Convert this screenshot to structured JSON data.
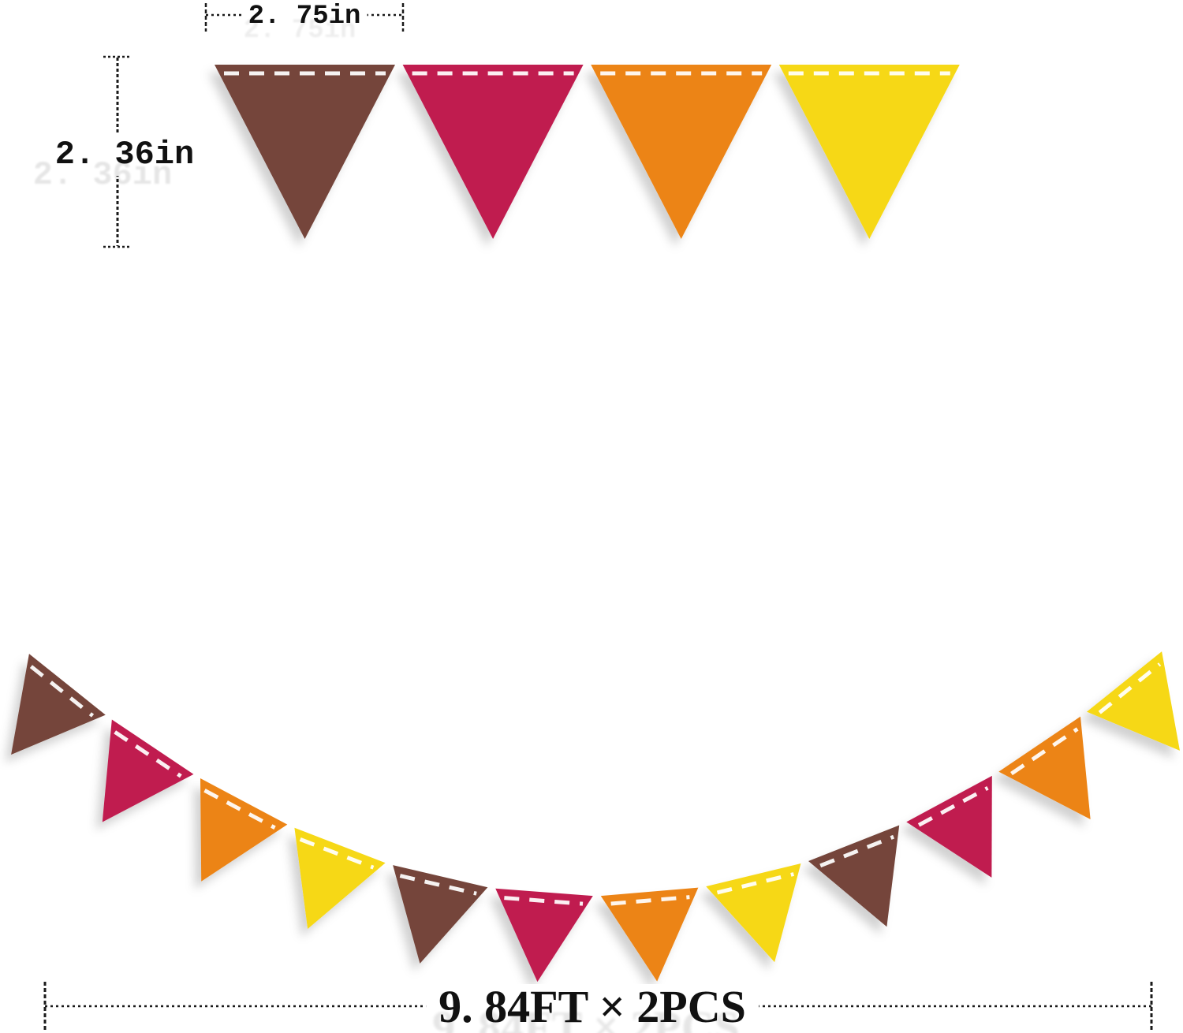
{
  "product": {
    "description": "Fall felt triangle pennant bunting banner dimension diagram"
  },
  "dimensions": {
    "flag_width_label": "2. 75in",
    "flag_height_label": "2. 36in",
    "banner_length_label": "9. 84FT × 2PCS"
  },
  "colors": {
    "brown": "#74453a",
    "maroon": "#c01d4f",
    "orange": "#ec8414",
    "yellow": "#f6d813",
    "stitch": "#ffffff",
    "dimension_line": "#1a1a1a"
  },
  "top_row": {
    "flag_colors": [
      "brown",
      "maroon",
      "orange",
      "yellow"
    ]
  },
  "garland": {
    "flag_colors": [
      "brown",
      "maroon",
      "orange",
      "yellow",
      "brown",
      "maroon",
      "orange",
      "yellow",
      "brown",
      "maroon",
      "orange",
      "yellow"
    ]
  }
}
